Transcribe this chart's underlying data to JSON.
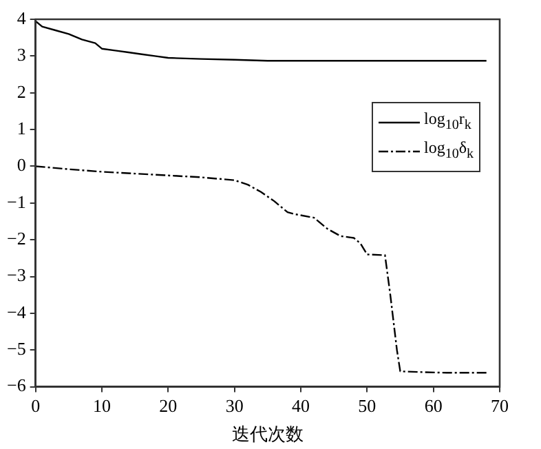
{
  "chart_data": {
    "type": "line",
    "xlabel": "迭代次数",
    "xlim": [
      0,
      70
    ],
    "xticks": [
      0,
      10,
      20,
      30,
      40,
      50,
      60,
      70
    ],
    "ylim": [
      -6,
      4
    ],
    "yticks": [
      -6,
      -5,
      -4,
      -3,
      -2,
      -1,
      0,
      1,
      2,
      3,
      4
    ],
    "grid": false,
    "legend": "top right",
    "marker": "none",
    "series": [
      {
        "name": "log$_{10}$r$_{k}$",
        "color": "#000000",
        "line_style": "solid",
        "x": [
          0,
          1,
          3,
          5,
          7,
          9,
          10,
          12,
          14,
          16,
          18,
          20,
          25,
          30,
          35,
          40,
          50,
          60,
          68
        ],
        "values": [
          3.95,
          3.8,
          3.7,
          3.6,
          3.45,
          3.35,
          3.2,
          3.15,
          3.1,
          3.05,
          3.0,
          2.95,
          2.92,
          2.9,
          2.87,
          2.87,
          2.87,
          2.87,
          2.87
        ]
      },
      {
        "name": "log$_{10}$δ$_{k}$",
        "color": "#000000",
        "line_style": "dashed",
        "x": [
          0,
          5,
          10,
          15,
          20,
          25,
          30,
          32,
          34,
          36,
          38,
          39,
          42,
          44,
          46,
          48,
          49,
          50,
          52.7,
          53.5,
          54.5,
          55,
          58,
          62,
          68
        ],
        "values": [
          0,
          -0.08,
          -0.15,
          -0.2,
          -0.25,
          -0.3,
          -0.38,
          -0.5,
          -0.7,
          -0.95,
          -1.25,
          -1.3,
          -1.4,
          -1.7,
          -1.9,
          -1.95,
          -2.1,
          -2.4,
          -2.42,
          -3.5,
          -5.0,
          -5.58,
          -5.6,
          -5.62,
          -5.62
        ]
      }
    ]
  }
}
